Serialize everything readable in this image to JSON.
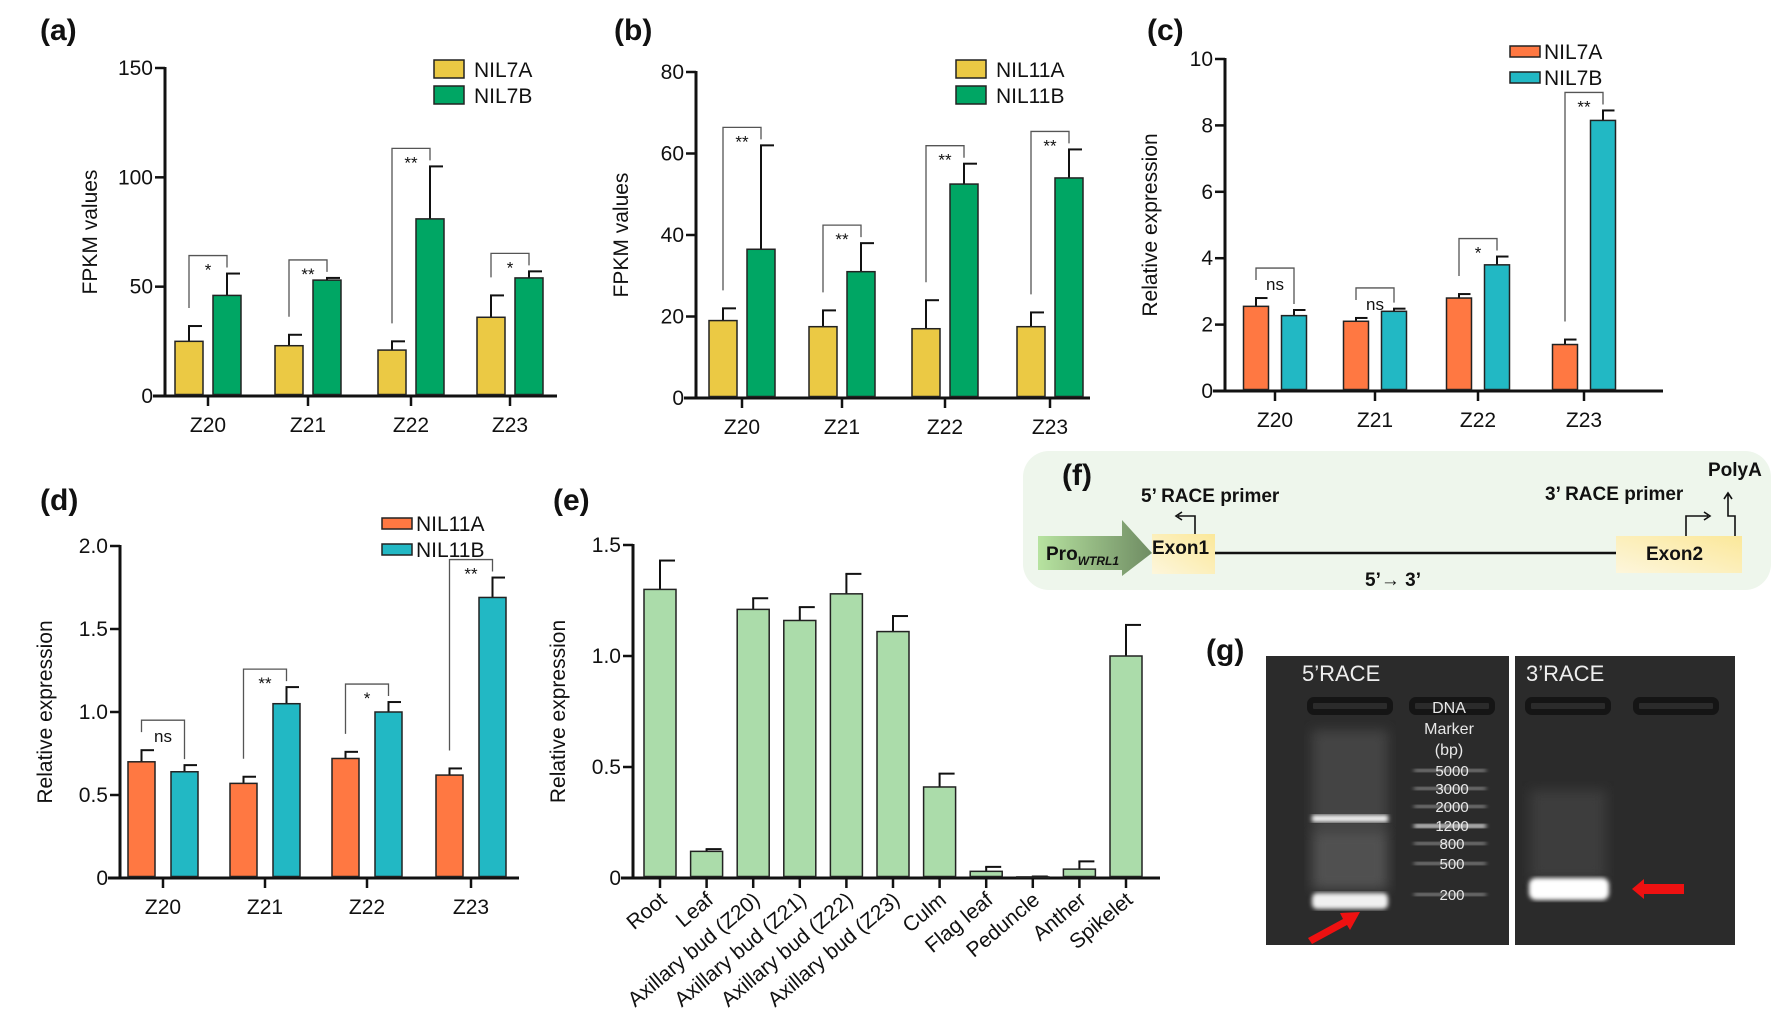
{
  "chart_data": [
    {
      "panel": "(a)",
      "type": "bar",
      "categories": [
        "Z20",
        "Z21",
        "Z22",
        "Z23"
      ],
      "ylabel": "FPKM values",
      "ylim": [
        0,
        150
      ],
      "yticks": [
        "0",
        "50",
        "100",
        "150"
      ],
      "legend_position": "top-right",
      "series": [
        {
          "name": "NIL7A",
          "color": "#ebc944",
          "values": [
            25,
            23,
            21,
            36
          ],
          "errors": [
            7,
            5,
            4,
            10
          ]
        },
        {
          "name": "NIL7B",
          "color": "#00a664",
          "values": [
            46,
            53,
            81,
            54
          ],
          "errors": [
            10,
            1,
            24,
            3
          ]
        }
      ],
      "significance": [
        "*",
        "**",
        "**",
        "*"
      ]
    },
    {
      "panel": "(b)",
      "type": "bar",
      "categories": [
        "Z20",
        "Z21",
        "Z22",
        "Z23"
      ],
      "ylabel": "FPKM values",
      "ylim": [
        0,
        80
      ],
      "yticks": [
        "0",
        "20",
        "40",
        "60",
        "80"
      ],
      "legend_position": "top-right",
      "series": [
        {
          "name": "NIL11A",
          "color": "#ebc944",
          "values": [
            19,
            17.5,
            17,
            17.5
          ],
          "errors": [
            3,
            4,
            7,
            3.5
          ]
        },
        {
          "name": "NIL11B",
          "color": "#00a664",
          "values": [
            36.5,
            31,
            52.5,
            54
          ],
          "errors": [
            25.5,
            7,
            5,
            7
          ]
        }
      ],
      "significance": [
        "**",
        "**",
        "**",
        "**"
      ]
    },
    {
      "panel": "(c)",
      "type": "bar",
      "categories": [
        "Z20",
        "Z21",
        "Z22",
        "Z23"
      ],
      "ylabel": "Relative expression",
      "ylim": [
        0,
        10
      ],
      "yticks": [
        "0",
        "2",
        "4",
        "6",
        "8",
        "10"
      ],
      "legend_position": "top-right",
      "series": [
        {
          "name": "NIL7A",
          "color": "#ff7842",
          "values": [
            2.55,
            2.1,
            2.8,
            1.4
          ],
          "errors": [
            0.25,
            0.1,
            0.12,
            0.15
          ]
        },
        {
          "name": "NIL7B",
          "color": "#22b8c4",
          "values": [
            2.27,
            2.4,
            3.8,
            8.15
          ],
          "errors": [
            0.17,
            0.08,
            0.25,
            0.3
          ]
        }
      ],
      "significance": [
        "ns",
        "ns",
        "*",
        "**"
      ]
    },
    {
      "panel": "(d)",
      "type": "bar",
      "categories": [
        "Z20",
        "Z21",
        "Z22",
        "Z23"
      ],
      "ylabel": "Relative expression",
      "ylim": [
        0,
        2.0
      ],
      "yticks": [
        "0",
        "0.5",
        "1.0",
        "1.5",
        "2.0"
      ],
      "legend_position": "top-right",
      "series": [
        {
          "name": "NIL11A",
          "color": "#ff7842",
          "values": [
            0.7,
            0.57,
            0.72,
            0.62
          ],
          "errors": [
            0.07,
            0.04,
            0.04,
            0.04
          ]
        },
        {
          "name": "NIL11B",
          "color": "#22b8c4",
          "values": [
            0.64,
            1.05,
            1.0,
            1.69
          ],
          "errors": [
            0.04,
            0.1,
            0.06,
            0.12
          ]
        }
      ],
      "significance": [
        "ns",
        "**",
        "*",
        "**"
      ]
    },
    {
      "panel": "(e)",
      "type": "bar",
      "categories": [
        "Root",
        "Leaf",
        "Axillary bud (Z20)",
        "Axillary bud (Z21)",
        "Axillary bud (Z22)",
        "Axillary bud (Z23)",
        "Culm",
        "Flag leaf",
        "Peduncle",
        "Anther",
        "Spikelet"
      ],
      "ylabel": "Relative expression",
      "ylim": [
        0,
        1.5
      ],
      "yticks": [
        "0",
        "0.5",
        "1.0",
        "1.5"
      ],
      "series": [
        {
          "color": "#abdcaa",
          "values": [
            1.3,
            0.12,
            1.21,
            1.16,
            1.28,
            1.11,
            0.41,
            0.03,
            0.005,
            0.04,
            1.0
          ],
          "errors": [
            0.13,
            0.01,
            0.05,
            0.06,
            0.09,
            0.07,
            0.06,
            0.02,
            0.002,
            0.035,
            0.14
          ]
        }
      ]
    }
  ],
  "diagram": {
    "panel": "(f)",
    "promoter": "Pro",
    "promoter_sub": "WTRL1",
    "exon1": "Exon1",
    "exon2": "Exon2",
    "primer5": "5’ RACE primer",
    "primer3": "3’ RACE primer",
    "polya": "PolyA",
    "direction": "5’→ 3’",
    "background": "#eef6ec"
  },
  "gel": {
    "panel": "(g)",
    "left_title": "5’RACE",
    "right_title": "3’RACE",
    "marker_title": [
      "DNA",
      "Marker",
      "(bp)"
    ],
    "marker_sizes": [
      "5000",
      "3000",
      "2000",
      "1200",
      "800",
      "500",
      "200"
    ],
    "arrow_color": "#ee1111"
  }
}
